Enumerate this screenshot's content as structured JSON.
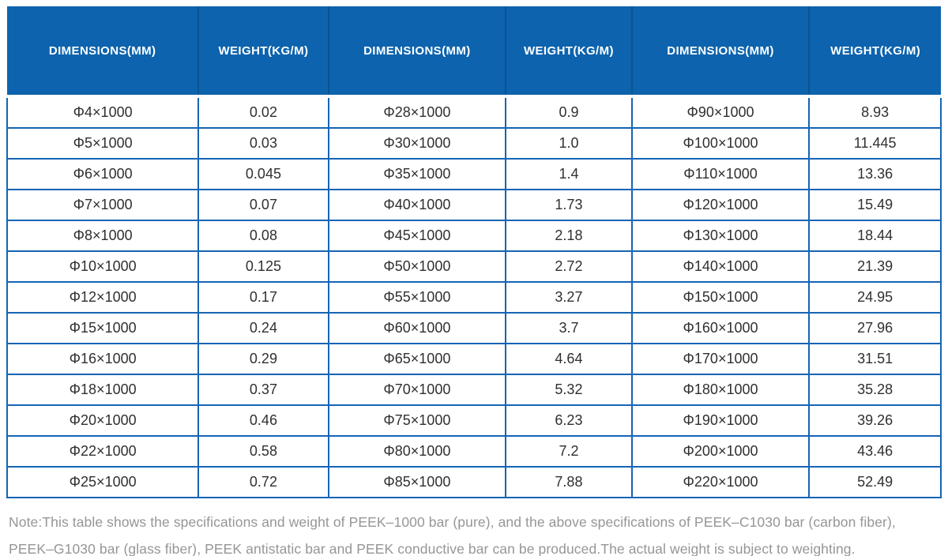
{
  "table": {
    "columns": [
      {
        "label": "DIMENSIONS(MM)"
      },
      {
        "label": "WEIGHT(KG/M)"
      },
      {
        "label": "DIMENSIONS(MM)"
      },
      {
        "label": "WEIGHT(KG/M)"
      },
      {
        "label": "DIMENSIONS(MM)"
      },
      {
        "label": "WEIGHT(KG/M)"
      }
    ],
    "rows": [
      [
        "Φ4×1000",
        "0.02",
        "Φ28×1000",
        "0.9",
        "Φ90×1000",
        "8.93"
      ],
      [
        "Φ5×1000",
        "0.03",
        "Φ30×1000",
        "1.0",
        "Φ100×1000",
        "11.445"
      ],
      [
        "Φ6×1000",
        "0.045",
        "Φ35×1000",
        "1.4",
        "Φ110×1000",
        "13.36"
      ],
      [
        "Φ7×1000",
        "0.07",
        "Φ40×1000",
        "1.73",
        "Φ120×1000",
        "15.49"
      ],
      [
        "Φ8×1000",
        "0.08",
        "Φ45×1000",
        "2.18",
        "Φ130×1000",
        "18.44"
      ],
      [
        "Φ10×1000",
        "0.125",
        "Φ50×1000",
        "2.72",
        "Φ140×1000",
        "21.39"
      ],
      [
        "Φ12×1000",
        "0.17",
        "Φ55×1000",
        "3.27",
        "Φ150×1000",
        "24.95"
      ],
      [
        "Φ15×1000",
        "0.24",
        "Φ60×1000",
        "3.7",
        "Φ160×1000",
        "27.96"
      ],
      [
        "Φ16×1000",
        "0.29",
        "Φ65×1000",
        "4.64",
        "Φ170×1000",
        "31.51"
      ],
      [
        "Φ18×1000",
        "0.37",
        "Φ70×1000",
        "5.32",
        "Φ180×1000",
        "35.28"
      ],
      [
        "Φ20×1000",
        "0.46",
        "Φ75×1000",
        "6.23",
        "Φ190×1000",
        "39.26"
      ],
      [
        "Φ22×1000",
        "0.58",
        "Φ80×1000",
        "7.2",
        "Φ200×1000",
        "43.46"
      ],
      [
        "Φ25×1000",
        "0.72",
        "Φ85×1000",
        "7.88",
        "Φ220×1000",
        "52.49"
      ]
    ]
  },
  "note": {
    "line1": "Note:This table shows the specifications and weight of PEEK–1000 bar (pure), and the above specifications of PEEK–C1030 bar (carbon fiber),",
    "line2": "PEEK–G1030 bar (glass fiber), PEEK antistatic bar and PEEK conductive bar can be produced.The actual weight is subject to weighting."
  },
  "colors": {
    "header_bg": "#0d63ad",
    "header_text": "#ffffff",
    "header_divider": "#09548f",
    "grid_border": "#1565b4",
    "cell_text": "#303030",
    "note_text": "#969696",
    "background": "#ffffff"
  }
}
